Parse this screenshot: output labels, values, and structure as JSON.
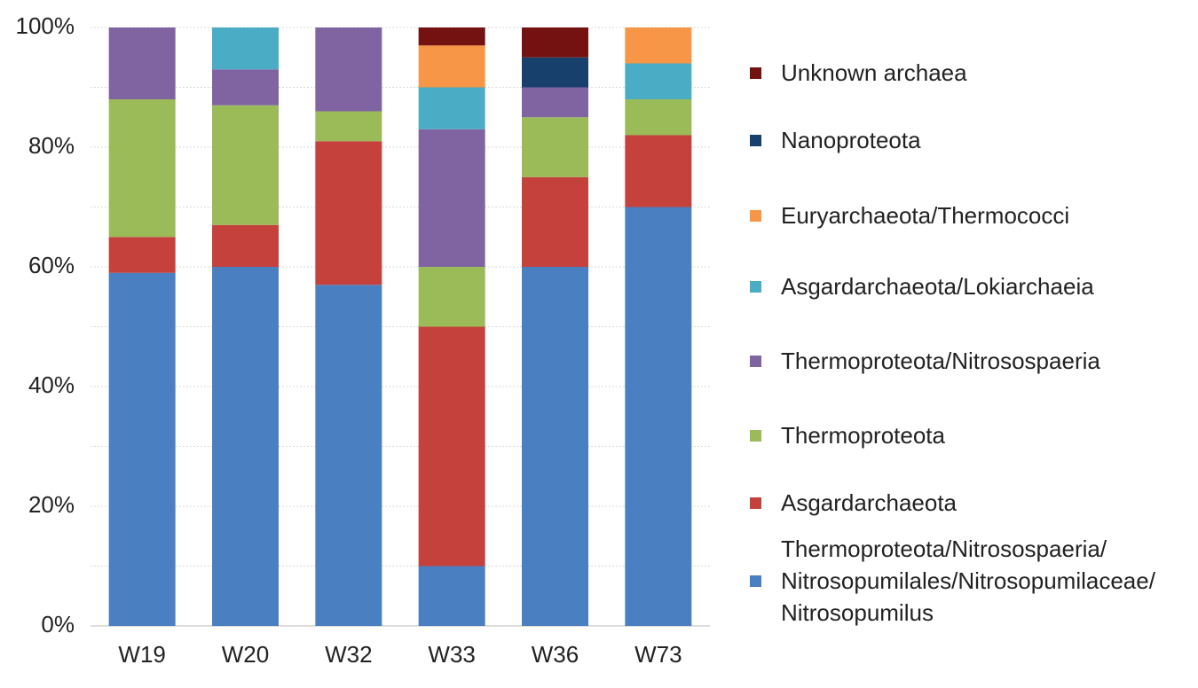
{
  "chart_data": {
    "type": "stacked_bar",
    "categories": [
      "W19",
      "W20",
      "W32",
      "W33",
      "W36",
      "W73"
    ],
    "series": [
      {
        "name": "Thermoproteota/Nitrosospaeria/ Nitrosopumilales/Nitrosopumilaceae/ Nitrosopumilus",
        "color": "#4a7fc1",
        "values": [
          59,
          60,
          57,
          10,
          60,
          70
        ]
      },
      {
        "name": "Asgardarchaeota",
        "color": "#c4413c",
        "values": [
          6,
          7,
          24,
          40,
          15,
          12
        ]
      },
      {
        "name": "Thermoproteota",
        "color": "#9bbb59",
        "values": [
          23,
          20,
          5,
          10,
          10,
          6
        ]
      },
      {
        "name": "Thermoproteota/Nitrosospaeria",
        "color": "#8064a2",
        "values": [
          12,
          6,
          14,
          23,
          5,
          null
        ]
      },
      {
        "name": "Asgardarchaeota/Lokiarchaeia",
        "color": "#4bacc6",
        "values": [
          null,
          7,
          null,
          7,
          null,
          6
        ]
      },
      {
        "name": "Euryarchaeota/Thermococci",
        "color": "#f79646",
        "values": [
          null,
          null,
          null,
          7,
          null,
          6
        ]
      },
      {
        "name": "Nanoproteota",
        "color": "#17406d",
        "values": [
          null,
          null,
          null,
          null,
          5,
          null
        ]
      },
      {
        "name": "Unknown archaea",
        "color": "#741212",
        "values": [
          null,
          null,
          null,
          3,
          5,
          null
        ]
      }
    ],
    "ylim": [
      0,
      100
    ],
    "yticks": [
      {
        "value": 0,
        "label": "0%"
      },
      {
        "value": 20,
        "label": "20%"
      },
      {
        "value": 40,
        "label": "40%"
      },
      {
        "value": 60,
        "label": "60%"
      },
      {
        "value": 80,
        "label": "80%"
      },
      {
        "value": 100,
        "label": "100%"
      }
    ],
    "minor_gridlines": [
      10,
      30,
      50,
      70,
      90
    ],
    "grid": true,
    "legend": "right"
  }
}
